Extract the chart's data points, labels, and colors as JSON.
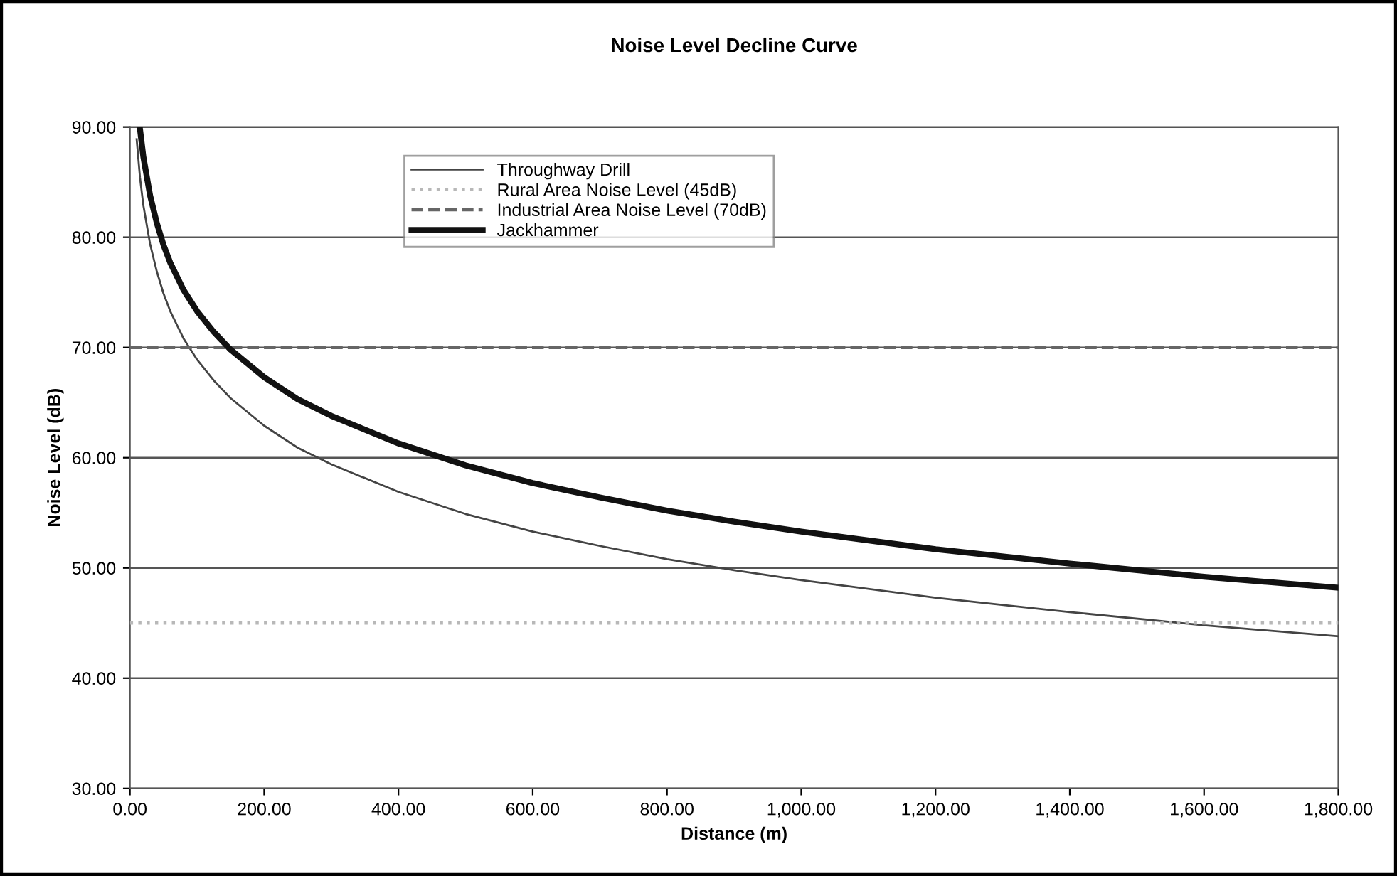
{
  "chart_data": {
    "type": "line",
    "title": "Noise Level Decline Curve",
    "xlabel": "Distance (m)",
    "ylabel": "Noise Level (dB)",
    "xlim": [
      0,
      1800
    ],
    "ylim": [
      30,
      90
    ],
    "xticks": [
      {
        "value": 0,
        "label": "0.00"
      },
      {
        "value": 200,
        "label": "200.00"
      },
      {
        "value": 400,
        "label": "400.00"
      },
      {
        "value": 600,
        "label": "600.00"
      },
      {
        "value": 800,
        "label": "800.00"
      },
      {
        "value": 1000,
        "label": "1,000.00"
      },
      {
        "value": 1200,
        "label": "1,200.00"
      },
      {
        "value": 1400,
        "label": "1,400.00"
      },
      {
        "value": 1600,
        "label": "1,600.00"
      },
      {
        "value": 1800,
        "label": "1,800.00"
      }
    ],
    "yticks": [
      {
        "value": 30,
        "label": "30.00"
      },
      {
        "value": 40,
        "label": "40.00"
      },
      {
        "value": 50,
        "label": "50.00"
      },
      {
        "value": 60,
        "label": "60.00"
      },
      {
        "value": 70,
        "label": "70.00"
      },
      {
        "value": 80,
        "label": "80.00"
      },
      {
        "value": 90,
        "label": "90.00"
      }
    ],
    "grid": "y",
    "legend": "top",
    "marker": "none",
    "series": [
      {
        "name": "Throughway Drill",
        "color": "#444444",
        "line_style": "solid",
        "x": [
          10,
          15,
          20,
          30,
          40,
          50,
          60,
          80,
          100,
          125,
          150,
          200,
          250,
          300,
          400,
          500,
          600,
          700,
          800,
          900,
          1000,
          1200,
          1400,
          1600,
          1800
        ],
        "values": [
          88.9,
          85.4,
          82.9,
          79.4,
          76.9,
          74.9,
          73.3,
          70.8,
          68.9,
          67.0,
          65.4,
          62.9,
          60.9,
          59.4,
          56.9,
          54.9,
          53.3,
          52.0,
          50.8,
          49.8,
          48.9,
          47.3,
          46.0,
          44.8,
          43.8
        ]
      },
      {
        "name": "Rural Area Noise Level (45dB)",
        "color": "#b8b8b8",
        "line_style": "dotted",
        "x": [
          0,
          1800
        ],
        "values": [
          45,
          45
        ]
      },
      {
        "name": "Industrial Area Noise Level (70dB)",
        "color": "#666666",
        "line_style": "dashed",
        "x": [
          0,
          1800
        ],
        "values": [
          70,
          70
        ]
      },
      {
        "name": "Jackhammer",
        "color": "#111111",
        "line_style": "solid",
        "x": [
          15,
          20,
          30,
          40,
          50,
          60,
          80,
          100,
          125,
          150,
          200,
          250,
          300,
          400,
          500,
          600,
          700,
          800,
          900,
          1000,
          1200,
          1400,
          1600,
          1800
        ],
        "values": [
          89.8,
          87.3,
          83.8,
          81.3,
          79.3,
          77.7,
          75.2,
          73.3,
          71.4,
          69.8,
          67.3,
          65.3,
          63.8,
          61.3,
          59.3,
          57.7,
          56.4,
          55.2,
          54.2,
          53.3,
          51.7,
          50.4,
          49.2,
          48.2
        ]
      }
    ]
  }
}
